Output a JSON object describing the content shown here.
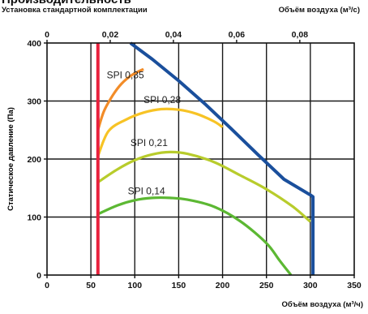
{
  "header": {
    "title": "Производительность",
    "subtitle": "Установка стандартной комплектации",
    "top_axis_label": "Объём воздуха (м³/с)",
    "bottom_axis_label": "Объём воздуха (м³/ч)"
  },
  "chart_data": {
    "type": "line",
    "title": "Производительность",
    "subtitle": "Установка стандартной комплектации",
    "xlabel": "Объём воздуха (м³/ч)",
    "x2label": "Объём воздуха (м³/с)",
    "ylabel": "Статическое давление (Па)",
    "xlim": [
      0,
      350
    ],
    "ylim": [
      0,
      400
    ],
    "x_ticks": [
      "0",
      "50",
      "100",
      "150",
      "200",
      "250",
      "300",
      "350"
    ],
    "y_ticks": [
      "0",
      "100",
      "200",
      "300",
      "400"
    ],
    "x2_ticks": [
      "0",
      "0,02",
      "0,04",
      "0,06",
      "0,08"
    ],
    "grid": true,
    "series": [
      {
        "name": "SPI 0,35",
        "color": "#f28c28",
        "x": [
          58,
          65,
          75,
          85,
          97,
          110
        ],
        "y": [
          250,
          283,
          310,
          330,
          345,
          355
        ]
      },
      {
        "name": "SPI 0,28",
        "color": "#f7c325",
        "x": [
          58,
          70,
          90,
          110,
          130,
          150,
          170,
          190,
          200
        ],
        "y": [
          205,
          248,
          268,
          280,
          286,
          285,
          278,
          265,
          255
        ]
      },
      {
        "name": "SPI 0,21",
        "color": "#b8cc2c",
        "x": [
          58,
          80,
          100,
          120,
          140,
          160,
          190,
          220,
          250,
          280,
          300
        ],
        "y": [
          160,
          182,
          198,
          208,
          212,
          209,
          195,
          172,
          148,
          118,
          92
        ]
      },
      {
        "name": "SPI 0,14",
        "color": "#5cb833",
        "x": [
          58,
          80,
          100,
          120,
          140,
          160,
          190,
          220,
          250,
          265,
          278
        ],
        "y": [
          105,
          120,
          129,
          133,
          133,
          130,
          118,
          93,
          55,
          25,
          0
        ]
      },
      {
        "name": "",
        "color": "#1a4f9c",
        "x": [
          95,
          120,
          150,
          180,
          210,
          240,
          270,
          300,
          303,
          303
        ],
        "y": [
          400,
          372,
          335,
          295,
          252,
          208,
          165,
          138,
          135,
          0
        ]
      },
      {
        "name": "",
        "color": "#e8213d",
        "x": [
          58,
          58
        ],
        "y": [
          0,
          400
        ]
      }
    ],
    "label_positions": [
      {
        "text": "SPI 0,35",
        "x": 68,
        "y": 345
      },
      {
        "text": "SPI 0,28",
        "x": 110,
        "y": 302
      },
      {
        "text": "SPI 0,21",
        "x": 95,
        "y": 228
      },
      {
        "text": "SPI 0,14",
        "x": 92,
        "y": 145
      }
    ]
  }
}
